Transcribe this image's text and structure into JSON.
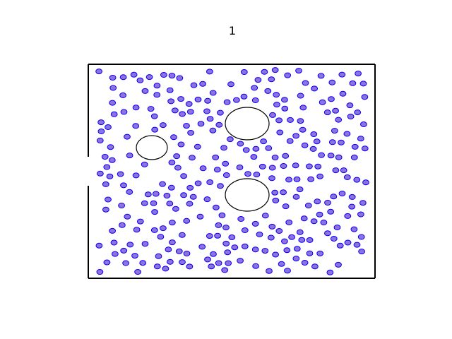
{
  "figure": {
    "title": "1"
  },
  "colors": {
    "background": "#ffffff",
    "wall": "#000000",
    "particle_fill": "#9370db",
    "particle_edge": "#0000ff",
    "obstacle_fill": "#ffffff",
    "obstacle_edge": "#000000"
  }
}
